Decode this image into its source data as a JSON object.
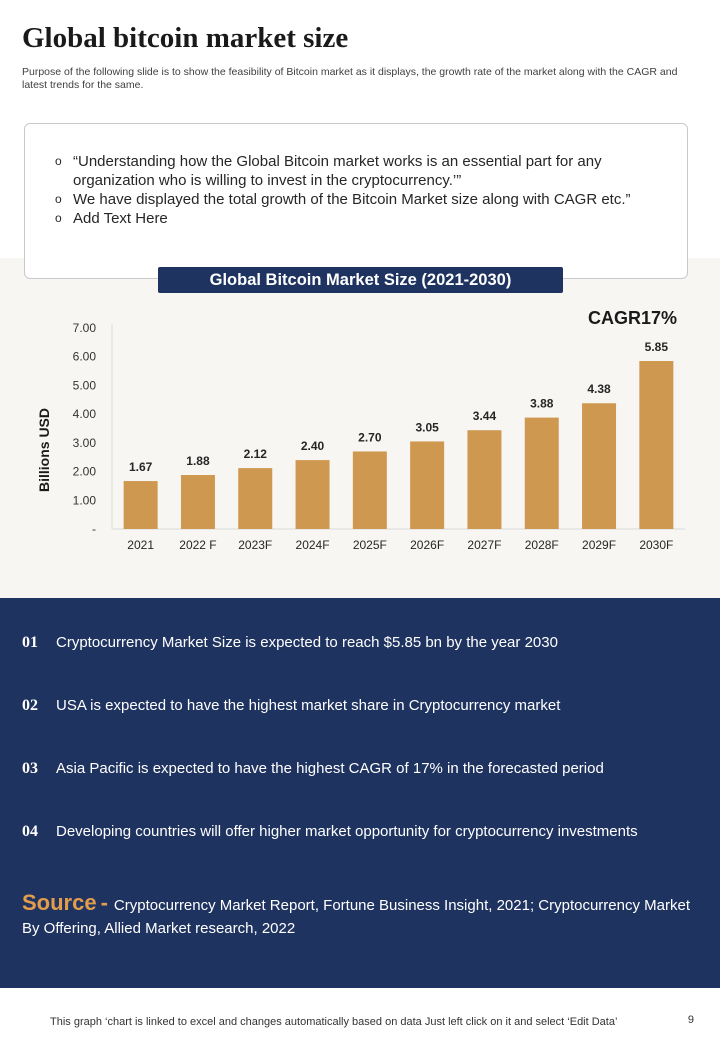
{
  "title": "Global bitcoin market size",
  "subtitle": "Purpose of the following slide is to show the feasibility of Bitcoin market as it displays, the growth rate of the market  along with the CAGR and latest trends for the same.",
  "quotes": [
    "“Understanding how the Global Bitcoin market works is an essential part for any organization who is willing to invest in the cryptocurrency.’”",
    "We have displayed the total growth  of the Bitcoin Market size along with CAGR etc.”",
    "Add Text Here"
  ],
  "cagr_label": "CAGR17%",
  "chart_data": {
    "type": "bar",
    "title": "Global Bitcoin Market Size (2021-2030)",
    "categories": [
      "2021",
      "2022 F",
      "2023F",
      "2024F",
      "2025F",
      "2026F",
      "2027F",
      "2028F",
      "2029F",
      "2030F"
    ],
    "values": [
      1.67,
      1.88,
      2.12,
      2.4,
      2.7,
      3.05,
      3.44,
      3.88,
      4.38,
      5.85
    ],
    "value_labels": [
      "1.67",
      "1.88",
      "2.12",
      "2.40",
      "2.70",
      "3.05",
      "3.44",
      "3.88",
      "4.38",
      "5.85"
    ],
    "ylabel": "Billions USD",
    "xlabel": "",
    "ylim": [
      0,
      7
    ],
    "yticks": [
      "-",
      "1.00",
      "2.00",
      "3.00",
      "4.00",
      "5.00",
      "6.00",
      "7.00"
    ],
    "bar_color": "#cf9850",
    "grid": false
  },
  "points": [
    {
      "num": "01",
      "text": "Cryptocurrency  Market Size is expected to reach $5.85 bn by the year 2030"
    },
    {
      "num": "02",
      "text": "USA is expected to have the highest market share in Cryptocurrency  market"
    },
    {
      "num": "03",
      "text": "Asia Pacific is expected to have the highest CAGR of 17% in the forecasted period"
    },
    {
      "num": "04",
      "text": "Developing countries will offer higher market opportunity for cryptocurrency  investments"
    }
  ],
  "source": {
    "label": "Source",
    "separator": "-",
    "text": "Cryptocurrency  Market Report, Fortune Business Insight,  2021; Cryptocurrency  Market By Offering, Allied Market research, 2022"
  },
  "footer_note": "This graph ‘chart is linked to excel  and changes automatically based on data Just left click on it and select ‘Edit Data’",
  "page_number": "9",
  "colors": {
    "navy": "#1f3360",
    "accent_orange": "#e29d4c",
    "bar": "#cf9850",
    "beige": "#f8f6f3"
  }
}
